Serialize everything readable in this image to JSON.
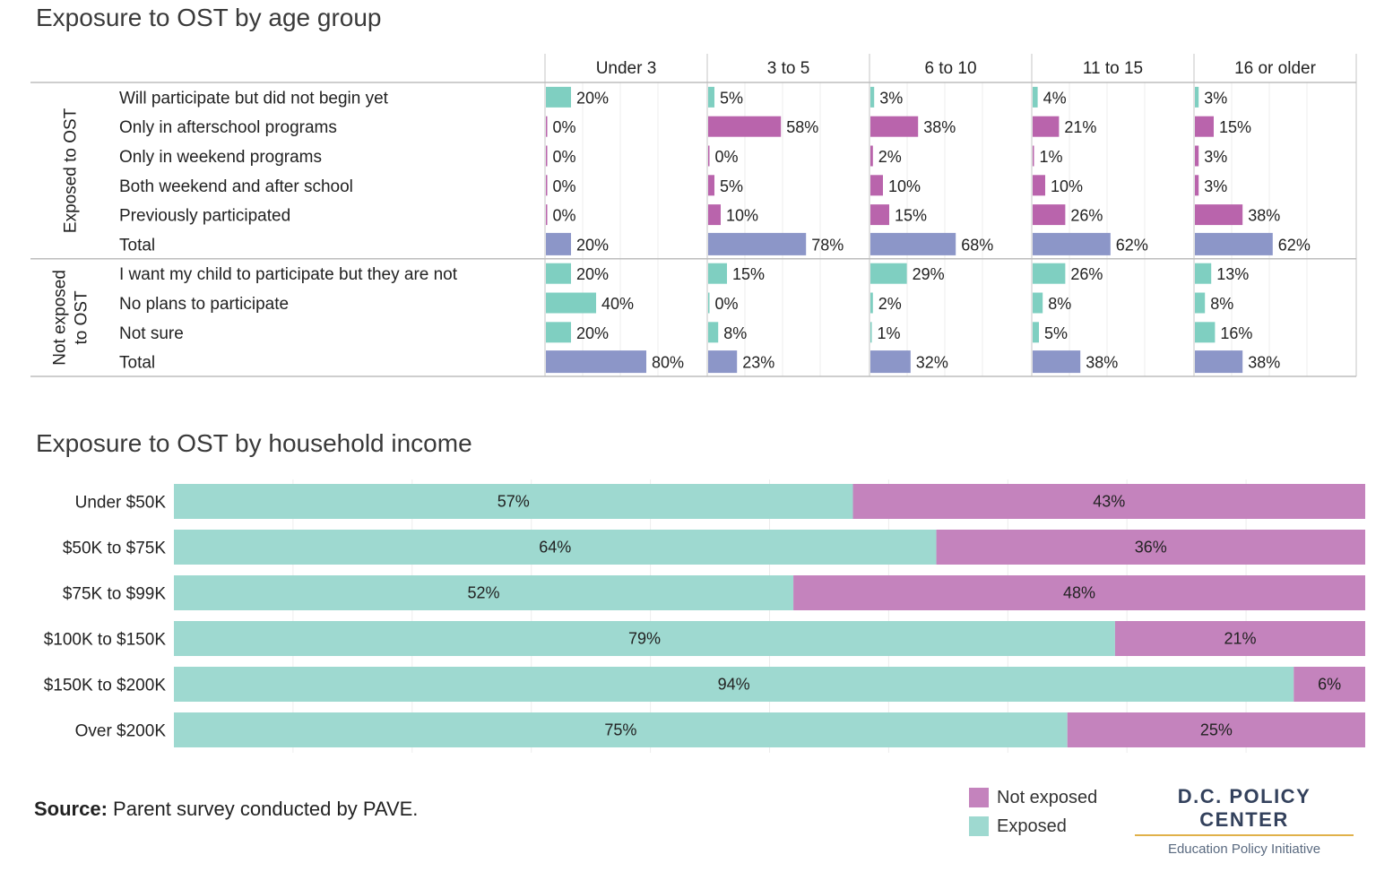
{
  "titles": {
    "age": "Exposure to OST by age group",
    "income": "Exposure to OST by household income"
  },
  "colors": {
    "exposed": "#7fcfc1",
    "not_exposed": "#c278b8",
    "magenta": "#b964ac",
    "total": "#8c96c8",
    "income_exposed": "#9ed9d0",
    "income_not_exposed": "#c483bd"
  },
  "chart_data": [
    {
      "type": "bar",
      "title": "Exposure to OST by age group",
      "columns": [
        "Under 3",
        "3 to 5",
        "6 to 10",
        "11 to 15",
        "16 or older"
      ],
      "groups": [
        {
          "label": "Exposed to OST",
          "rows": [
            {
              "label": "Will participate but did not begin yet",
              "kind": "teal",
              "values": [
                20,
                5,
                3,
                4,
                3
              ],
              "labels": [
                "20%",
                "5%",
                "3%",
                "4%",
                "3%"
              ]
            },
            {
              "label": "Only in afterschool programs",
              "kind": "magenta",
              "values": [
                0,
                58,
                38,
                21,
                15
              ],
              "labels": [
                "0%",
                "58%",
                "38%",
                "21%",
                "15%"
              ]
            },
            {
              "label": "Only in weekend programs",
              "kind": "magenta",
              "values": [
                0,
                0,
                2,
                1,
                3
              ],
              "labels": [
                "0%",
                "0%",
                "2%",
                "1%",
                "3%"
              ]
            },
            {
              "label": "Both weekend and after school",
              "kind": "magenta",
              "values": [
                0,
                5,
                10,
                10,
                3
              ],
              "labels": [
                "0%",
                "5%",
                "10%",
                "10%",
                "3%"
              ]
            },
            {
              "label": "Previously participated",
              "kind": "magenta",
              "values": [
                0,
                10,
                15,
                26,
                38
              ],
              "labels": [
                "0%",
                "10%",
                "15%",
                "26%",
                "38%"
              ]
            },
            {
              "label": "Total",
              "kind": "total",
              "values": [
                20,
                78,
                68,
                62,
                62
              ],
              "labels": [
                "20%",
                "78%",
                "68%",
                "62%",
                "62%"
              ]
            }
          ]
        },
        {
          "label": "Not exposed to OST",
          "label_lines": [
            "Not exposed",
            "to OST"
          ],
          "rows": [
            {
              "label": "I want my child to participate but they are not",
              "kind": "teal",
              "values": [
                20,
                15,
                29,
                26,
                13
              ],
              "labels": [
                "20%",
                "15%",
                "29%",
                "26%",
                "13%"
              ]
            },
            {
              "label": "No plans to participate",
              "kind": "teal",
              "values": [
                40,
                0,
                2,
                8,
                8
              ],
              "labels": [
                "40%",
                "0%",
                "2%",
                "8%",
                "8%"
              ]
            },
            {
              "label": "Not sure",
              "kind": "teal",
              "values": [
                20,
                8,
                1,
                5,
                16
              ],
              "labels": [
                "20%",
                "8%",
                "1%",
                "5%",
                "16%"
              ]
            },
            {
              "label": "Total",
              "kind": "total",
              "values": [
                80,
                23,
                32,
                38,
                38
              ],
              "labels": [
                "80%",
                "23%",
                "32%",
                "38%",
                "38%"
              ]
            }
          ]
        }
      ]
    },
    {
      "type": "bar",
      "stacked": true,
      "orientation": "horizontal",
      "title": "Exposure to OST by household income",
      "categories": [
        "Under $50K",
        "$50K to $75K",
        "$75K to $99K",
        "$100K to $150K",
        "$150K to $200K",
        "Over $200K"
      ],
      "series": [
        {
          "name": "Exposed",
          "values": [
            57,
            64,
            52,
            79,
            94,
            75
          ],
          "labels": [
            "57%",
            "64%",
            "52%",
            "79%",
            "94%",
            "75%"
          ]
        },
        {
          "name": "Not exposed",
          "values": [
            43,
            36,
            48,
            21,
            6,
            25
          ],
          "labels": [
            "43%",
            "36%",
            "48%",
            "21%",
            "6%",
            "25%"
          ]
        }
      ],
      "xlim": [
        0,
        100
      ]
    }
  ],
  "legend": [
    {
      "label": "Not exposed",
      "color": "#c483bd"
    },
    {
      "label": "Exposed",
      "color": "#9ed9d0"
    }
  ],
  "source": {
    "label": "Source:",
    "text": " Parent survey conducted by PAVE."
  },
  "logo": {
    "name": "D.C. POLICY CENTER",
    "subtitle": "Education Policy Initiative"
  }
}
